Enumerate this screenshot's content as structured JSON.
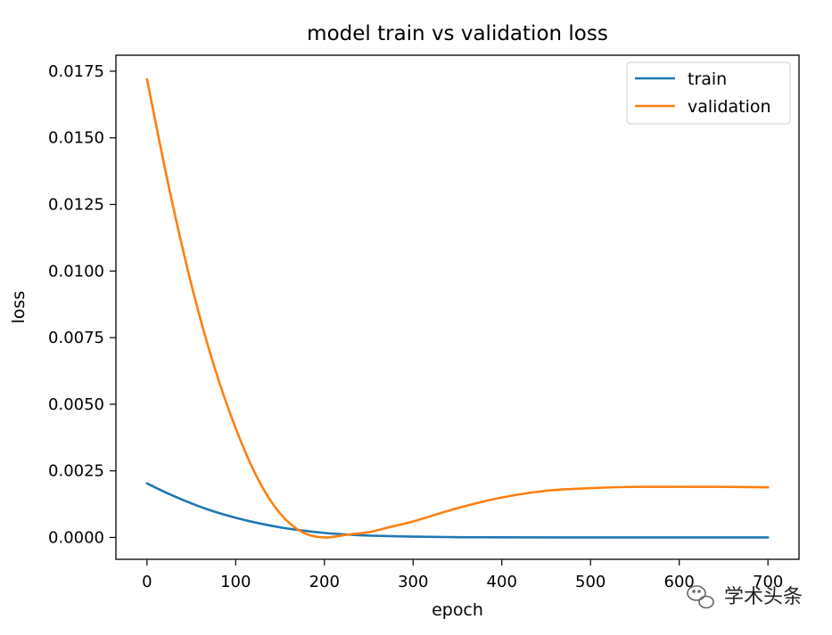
{
  "chart_data": {
    "type": "line",
    "title": "model train vs validation loss",
    "xlabel": "epoch",
    "ylabel": "loss",
    "xlim": [
      -35,
      735
    ],
    "ylim": [
      -0.00082,
      0.0181
    ],
    "xticks": [
      0,
      100,
      200,
      300,
      400,
      500,
      600,
      700
    ],
    "xtick_labels": [
      "0",
      "100",
      "200",
      "300",
      "400",
      "500",
      "600",
      "700"
    ],
    "yticks": [
      0,
      0.0025,
      0.005,
      0.0075,
      0.01,
      0.0125,
      0.015,
      0.0175
    ],
    "ytick_labels": [
      "0.0000",
      "0.0025",
      "0.0050",
      "0.0075",
      "0.0100",
      "0.0125",
      "0.0150",
      "0.0175"
    ],
    "grid": false,
    "legend_position": "top-right",
    "series": [
      {
        "name": "train",
        "color": "#1f77b4",
        "x": [
          0,
          25,
          50,
          75,
          100,
          125,
          150,
          175,
          200,
          225,
          250,
          300,
          350,
          400,
          500,
          600,
          700
        ],
        "values": [
          0.00203,
          0.00163,
          0.00128,
          0.00098,
          0.00074,
          0.00054,
          0.00038,
          0.00026,
          0.00017,
          0.00011,
          7e-05,
          3e-05,
          1e-05,
          5e-06,
          0.0,
          0.0,
          0.0
        ]
      },
      {
        "name": "validation",
        "color": "#ff7f0e",
        "x": [
          0,
          25,
          50,
          75,
          100,
          125,
          150,
          175,
          200,
          225,
          250,
          275,
          300,
          350,
          400,
          450,
          500,
          550,
          600,
          650,
          700
        ],
        "values": [
          0.0172,
          0.0131,
          0.0095,
          0.0065,
          0.0041,
          0.0022,
          0.0009,
          0.0002,
          0.0,
          0.0001,
          0.0002,
          0.0004,
          0.0006,
          0.0011,
          0.0015,
          0.00175,
          0.00185,
          0.0019,
          0.0019,
          0.0019,
          0.00188
        ]
      }
    ]
  },
  "watermark": {
    "text": "学术头条",
    "icon": "chat-bubble-icon"
  }
}
